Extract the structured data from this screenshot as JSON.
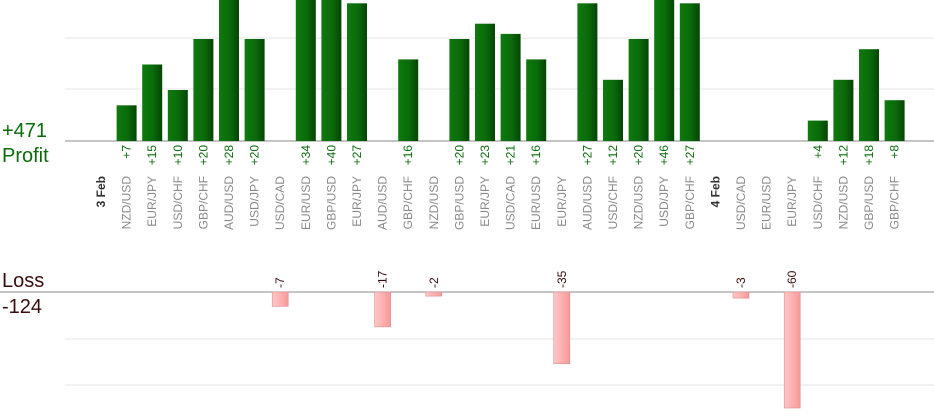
{
  "summary": {
    "profit_total": "+471",
    "profit_label": "Profit",
    "loss_label": "Loss",
    "loss_total": "-124"
  },
  "colors": {
    "profit_bar": "#0a6a0a",
    "profit_text": "#0b6b0b",
    "loss_bar": "#ffb3b3",
    "loss_text": "#3a0d0d",
    "gridline": "#e6e6e6",
    "baseline": "#888888",
    "pair_label": "#8a8a8a",
    "date_label": "#333333"
  },
  "chart_data": {
    "type": "bar",
    "title": "",
    "xlabel": "",
    "ylabel": "",
    "ylim_profit": [
      0,
      28
    ],
    "ylim_loss": [
      -60,
      0
    ],
    "grid": true,
    "categories": [
      {
        "kind": "date",
        "label": "3 Feb"
      },
      {
        "label": "NZD/USD",
        "value": "+7",
        "v": 7
      },
      {
        "label": "EUR/JPY",
        "value": "+15",
        "v": 15
      },
      {
        "label": "USD/CHF",
        "value": "+10",
        "v": 10
      },
      {
        "label": "GBP/CHF",
        "value": "+20",
        "v": 20
      },
      {
        "label": "AUD/USD",
        "value": "+28",
        "v": 28
      },
      {
        "label": "USD/JPY",
        "value": "+20",
        "v": 20
      },
      {
        "label": "USD/CAD",
        "value": "-7",
        "v": -7
      },
      {
        "label": "EUR/USD",
        "value": "+34",
        "v": 34
      },
      {
        "label": "GBP/USD",
        "value": "+40",
        "v": 40
      },
      {
        "label": "EUR/JPY",
        "value": "+27",
        "v": 27
      },
      {
        "label": "AUD/USD",
        "value": "-17",
        "v": -17
      },
      {
        "label": "GBP/CHF",
        "value": "+16",
        "v": 16
      },
      {
        "label": "NZD/USD",
        "value": "-2",
        "v": -2
      },
      {
        "label": "GBP/USD",
        "value": "+20",
        "v": 20
      },
      {
        "label": "EUR/JPY",
        "value": "+23",
        "v": 23
      },
      {
        "label": "USD/CAD",
        "value": "+21",
        "v": 21
      },
      {
        "label": "EUR/USD",
        "value": "+16",
        "v": 16
      },
      {
        "label": "EUR/JPY",
        "value": "-35",
        "v": -35
      },
      {
        "label": "AUD/USD",
        "value": "+27",
        "v": 27
      },
      {
        "label": "USD/CHF",
        "value": "+12",
        "v": 12
      },
      {
        "label": "NZD/USD",
        "value": "+20",
        "v": 20
      },
      {
        "label": "USD/JPY",
        "value": "+46",
        "v": 46
      },
      {
        "label": "GBP/CHF",
        "value": "+27",
        "v": 27
      },
      {
        "kind": "date",
        "label": "4 Feb"
      },
      {
        "label": "USD/CAD",
        "value": "-3",
        "v": -3
      },
      {
        "label": "EUR/USD",
        "value": "",
        "v": 0
      },
      {
        "label": "EUR/JPY",
        "value": "-60",
        "v": -60
      },
      {
        "label": "USD/CHF",
        "value": "+4",
        "v": 4
      },
      {
        "label": "NZD/USD",
        "value": "+12",
        "v": 12
      },
      {
        "label": "GBP/USD",
        "value": "+18",
        "v": 18
      },
      {
        "label": "GBP/CHF",
        "value": "+8",
        "v": 8
      }
    ]
  }
}
